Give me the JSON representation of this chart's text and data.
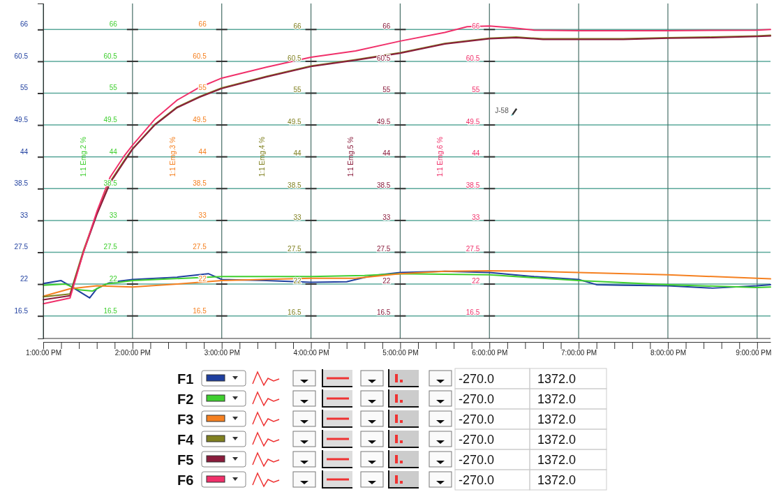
{
  "chart_data": {
    "type": "line",
    "legend": "bottom",
    "grid": true,
    "xlim": [
      13,
      21.15
    ],
    "xticks": [
      {
        "value": 13,
        "label": "1:00:00 PM"
      },
      {
        "value": 13.2,
        "label": null
      },
      {
        "value": 13.4,
        "label": null
      },
      {
        "value": 13.6,
        "label": null
      },
      {
        "value": 13.8,
        "label": null
      },
      {
        "value": 14,
        "label": "2:00:00 PM"
      },
      {
        "value": 14.2,
        "label": null
      },
      {
        "value": 14.4,
        "label": null
      },
      {
        "value": 14.6,
        "label": null
      },
      {
        "value": 14.8,
        "label": null
      },
      {
        "value": 15,
        "label": "3:00:00 PM"
      },
      {
        "value": 15.2,
        "label": null
      },
      {
        "value": 15.4,
        "label": null
      },
      {
        "value": 15.6,
        "label": null
      },
      {
        "value": 15.8,
        "label": null
      },
      {
        "value": 16,
        "label": "4:00:00 PM"
      },
      {
        "value": 16.2,
        "label": null
      },
      {
        "value": 16.4,
        "label": null
      },
      {
        "value": 16.6,
        "label": null
      },
      {
        "value": 16.8,
        "label": null
      },
      {
        "value": 17,
        "label": "5:00:00 PM"
      },
      {
        "value": 17.2,
        "label": null
      },
      {
        "value": 17.4,
        "label": null
      },
      {
        "value": 17.6,
        "label": null
      },
      {
        "value": 17.8,
        "label": null
      },
      {
        "value": 18,
        "label": "6:00:00 PM"
      },
      {
        "value": 18.2,
        "label": null
      },
      {
        "value": 18.4,
        "label": null
      },
      {
        "value": 18.6,
        "label": null
      },
      {
        "value": 18.8,
        "label": null
      },
      {
        "value": 19,
        "label": "7:00:00 PM"
      },
      {
        "value": 19.2,
        "label": null
      },
      {
        "value": 19.4,
        "label": null
      },
      {
        "value": 19.6,
        "label": null
      },
      {
        "value": 19.8,
        "label": null
      },
      {
        "value": 20,
        "label": "8:00:00 PM"
      },
      {
        "value": 20.2,
        "label": null
      },
      {
        "value": 20.4,
        "label": null
      },
      {
        "value": 20.6,
        "label": null
      },
      {
        "value": 20.8,
        "label": null
      },
      {
        "value": 21,
        "label": "9:00:00 PM"
      }
    ],
    "ylim": [
      12.6,
      70.5
    ],
    "yticks": [
      16.5,
      22,
      27.5,
      33,
      38.5,
      44,
      49.5,
      55,
      60.5,
      66
    ],
    "y2lim": [
      12.6,
      70.5
    ],
    "y2ticks": [
      16.5,
      22,
      27.5,
      33,
      38.5,
      44,
      49.5,
      55,
      60.5,
      66
    ],
    "y2label": "1:1 Emg.2 %",
    "y3lim": [
      12.6,
      70.5
    ],
    "y3ticks": [
      16.5,
      22,
      27.5,
      33,
      38.5,
      44,
      49.5,
      55,
      60.5,
      66
    ],
    "y3label": "1:1 Emg.3 %",
    "annotations": [
      "J-58",
      "1:1 Emg.4 %",
      "1:1 Emg.5 %",
      "1:1 Emg.6 %",
      "-270.0",
      "1372.0",
      "-270.0",
      "1372.0",
      "-270.0",
      "1372.0",
      "-270.0",
      "1372.0",
      "-270.0",
      "1372.0",
      "-270.0",
      "1372.0",
      "16.5",
      "22",
      "27.5",
      "33",
      "38.5",
      "44",
      "49.5",
      "55",
      "60.5",
      "66",
      "16.5",
      "22",
      "27.5",
      "33",
      "38.5",
      "44",
      "49.5",
      "55",
      "60.5",
      "66",
      "16.5",
      "22",
      "27.5",
      "33",
      "38.5",
      "44",
      "49.5",
      "55",
      "60.5",
      "66"
    ],
    "series": [
      {
        "name": "F1",
        "color": "#1f3f9f",
        "x": [
          13,
          13.2,
          13.32,
          13.52,
          13.6,
          13.75,
          14,
          14.5,
          14.85,
          15,
          15.5,
          16,
          16.4,
          16.7,
          17,
          17.5,
          18,
          18.5,
          19,
          19.2,
          19.5,
          20,
          20.5,
          21,
          21.15
        ],
        "values": [
          22.1,
          22.6,
          21.5,
          19.6,
          21.2,
          22.3,
          22.8,
          23.2,
          23.8,
          22.8,
          22.6,
          22.3,
          22.4,
          23.5,
          24,
          24.2,
          24,
          23.3,
          22.8,
          21.9,
          21.8,
          21.7,
          21.3,
          21.7,
          21.9
        ]
      },
      {
        "name": "F2",
        "color": "#3fcf2f",
        "axis": "y2",
        "x": [
          13,
          13.25,
          13.4,
          13.55,
          13.7,
          14,
          15,
          16,
          16.6,
          17,
          18,
          19,
          20,
          21,
          21.15
        ],
        "values": [
          21.8,
          22,
          21,
          20.8,
          22,
          22.6,
          23.3,
          23.3,
          23.5,
          23.8,
          23.6,
          22.6,
          21.9,
          21.4,
          21.5
        ]
      },
      {
        "name": "F3",
        "color": "#f58020",
        "axis": "y3",
        "x": [
          13,
          13.3,
          13.6,
          14,
          14.5,
          15,
          16,
          16.5,
          17,
          17.5,
          18,
          18.5,
          19,
          20,
          21,
          21.15
        ],
        "values": [
          19.9,
          21.2,
          21.7,
          21.5,
          22,
          22.6,
          23,
          23,
          23.8,
          24.2,
          24.3,
          24.2,
          24,
          23.6,
          23,
          22.9
        ]
      },
      {
        "name": "F4",
        "color": "#808020",
        "x": [
          13,
          13.3,
          13.45,
          13.6,
          13.75,
          13.9,
          14,
          14.25,
          14.5,
          14.75,
          15,
          15.5,
          16,
          16.5,
          17,
          17.5,
          18,
          18.3,
          18.6,
          19,
          19.5,
          20,
          20.5,
          21,
          21.15
        ],
        "values": [
          19.8,
          20.3,
          27.8,
          34.2,
          39.7,
          43.2,
          45.4,
          49.6,
          52.6,
          54.4,
          55.9,
          57.9,
          59.7,
          60.8,
          62,
          63.6,
          64.5,
          64.7,
          64.4,
          64.4,
          64.4,
          64.6,
          64.7,
          64.9,
          65
        ]
      },
      {
        "name": "F5",
        "color": "#8a1c3c",
        "x": [
          13,
          13.3,
          13.45,
          13.6,
          13.75,
          13.9,
          14,
          14.25,
          14.5,
          14.75,
          15,
          15.5,
          16,
          16.5,
          17,
          17.5,
          18,
          18.3,
          18.6,
          19,
          19.5,
          20,
          20.5,
          21,
          21.15
        ],
        "values": [
          19.3,
          20,
          27.5,
          34,
          39.5,
          43,
          45.3,
          49.5,
          52.5,
          54.3,
          55.8,
          57.8,
          59.6,
          60.7,
          61.9,
          63.5,
          64.4,
          64.6,
          64.3,
          64.3,
          64.3,
          64.5,
          64.6,
          64.8,
          64.9
        ]
      },
      {
        "name": "F6",
        "color": "#f0306a",
        "x": [
          13,
          13.3,
          13.45,
          13.6,
          13.75,
          13.9,
          14,
          14.25,
          14.5,
          14.75,
          15,
          15.5,
          16,
          16.5,
          17,
          17.5,
          17.75,
          18,
          18.25,
          18.5,
          19,
          20,
          21,
          21.15
        ],
        "values": [
          18.6,
          19.6,
          27.5,
          34.5,
          40.5,
          44,
          46,
          50.5,
          53.8,
          56,
          57.6,
          59.5,
          61.2,
          62.3,
          64,
          65.5,
          66.5,
          66.6,
          66.3,
          65.9,
          65.8,
          65.8,
          65.9,
          66
        ]
      }
    ]
  }
}
